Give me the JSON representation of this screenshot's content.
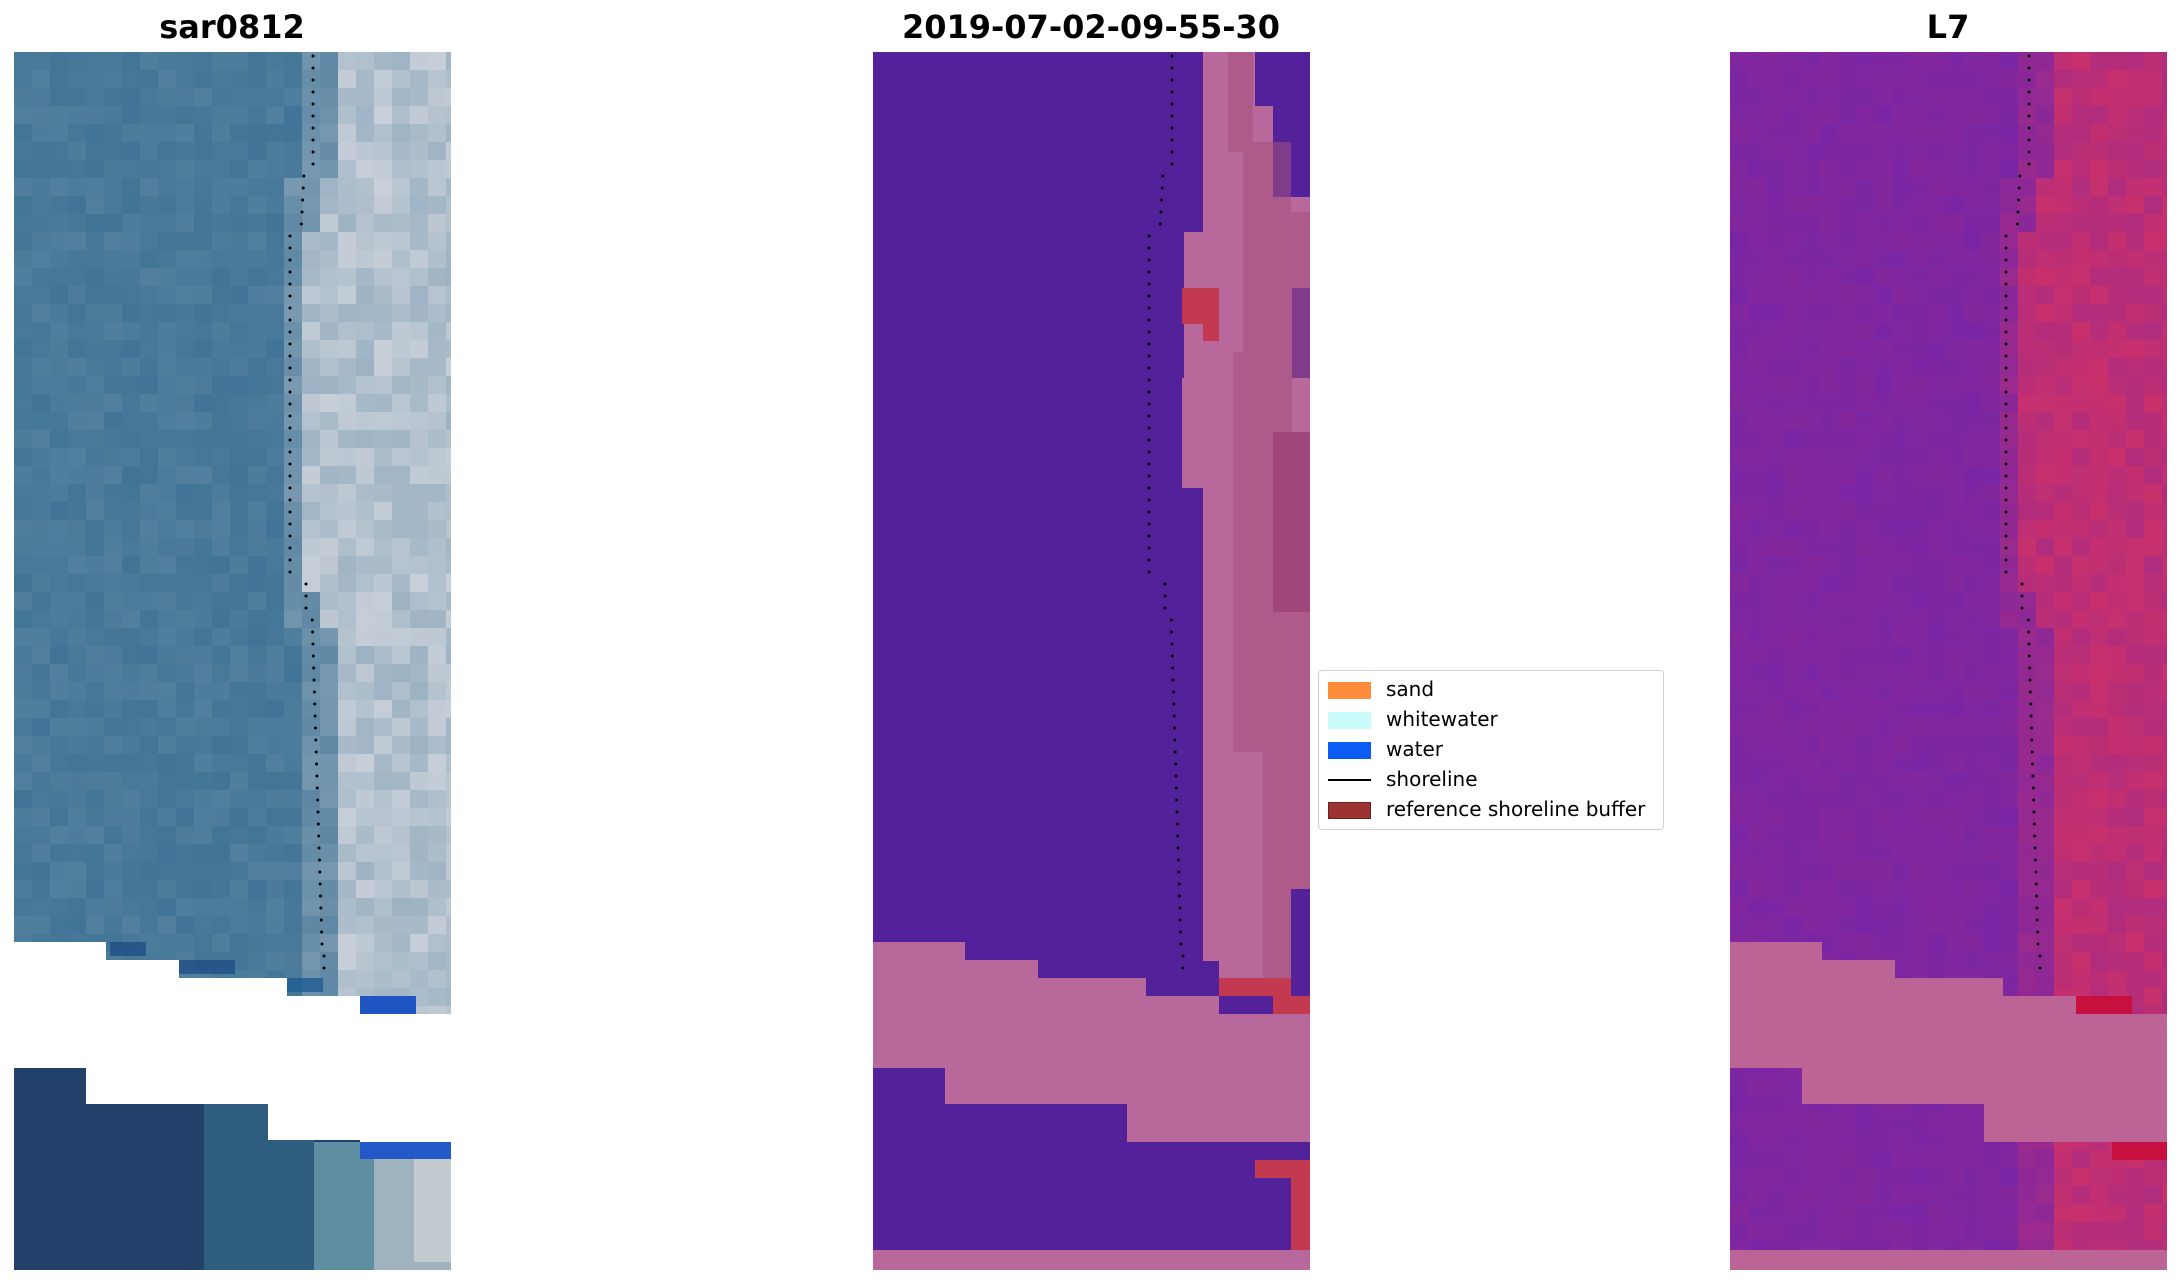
{
  "panels": [
    {
      "title": "sar0812",
      "image": "RGB satellite image"
    },
    {
      "title": "2019-07-02-09-55-30",
      "image": "classified image"
    },
    {
      "title": "L7",
      "image": "MNDWI image"
    }
  ],
  "legend": {
    "items": [
      {
        "label": "sand",
        "color": "#ff8c3a",
        "kind": "patch"
      },
      {
        "label": "whitewater",
        "color": "#c8fbfa",
        "kind": "patch"
      },
      {
        "label": "water",
        "color": "#0a5cf5",
        "kind": "patch"
      },
      {
        "label": "shoreline",
        "color": "#000000",
        "kind": "line"
      },
      {
        "label": "reference shoreline buffer",
        "color": "#9c3232",
        "kind": "patch"
      }
    ]
  },
  "colors": {
    "rgb_water": "#3a6f92",
    "rgb_land": "#c7cfd8",
    "class_water": "#53229a",
    "class_land": "#b9689c",
    "class_buffer": "#c33a50",
    "mndwi_water": "#7625a7",
    "mndwi_land": "#c8306c"
  }
}
